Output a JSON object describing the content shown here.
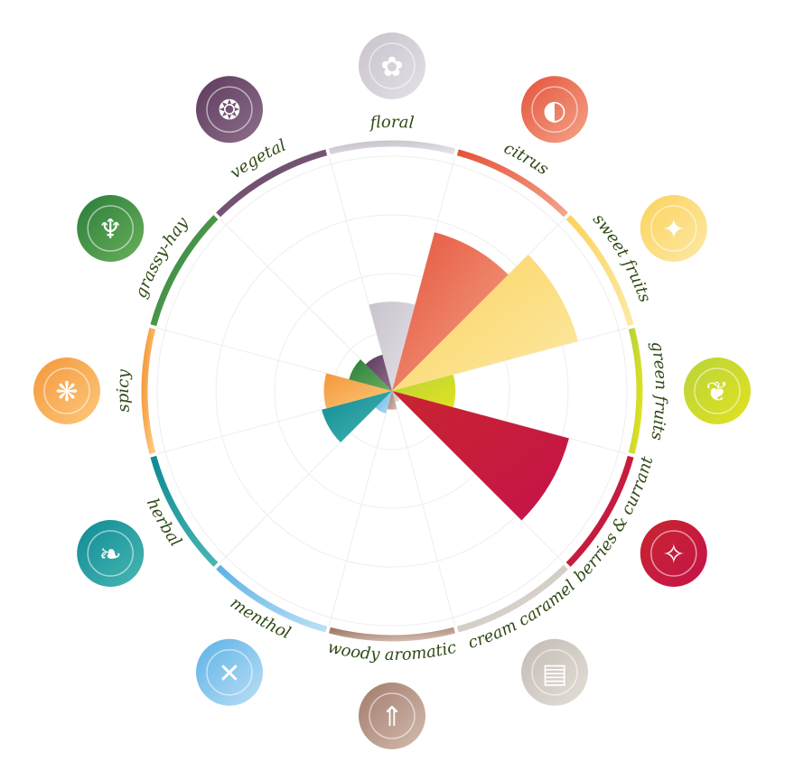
{
  "chart_data": {
    "type": "polar-area",
    "title": "",
    "max_value": 10,
    "categories": [
      {
        "label": "floral",
        "value": 3.8,
        "icon": "flower-icon",
        "color_start": "#c9c3cc",
        "color_end": "#e4e0e6"
      },
      {
        "label": "citrus",
        "value": 7.0,
        "icon": "lemon-slice-icon",
        "color_start": "#e4533a",
        "color_end": "#f4a48a"
      },
      {
        "label": "sweet fruits",
        "value": 8.2,
        "icon": "pineapple-icon",
        "color_start": "#fbd25c",
        "color_end": "#fde9a6"
      },
      {
        "label": "green fruits",
        "value": 2.7,
        "icon": "pear-icon",
        "color_start": "#b9d33a",
        "color_end": "#e2e21f"
      },
      {
        "label": "berries & currant",
        "value": 7.8,
        "icon": "berries-icon",
        "color_start": "#c8252f",
        "color_end": "#c5134a"
      },
      {
        "label": "cream caramel",
        "value": 0.5,
        "icon": "cake-icon",
        "color_start": "#c3bbb3",
        "color_end": "#e4dfd9"
      },
      {
        "label": "woody aromatic",
        "value": 0.8,
        "icon": "trees-icon",
        "color_start": "#a27b6c",
        "color_end": "#d3bcaf"
      },
      {
        "label": "menthol",
        "value": 1.0,
        "icon": "candy-cane-icon",
        "color_start": "#5bb2e6",
        "color_end": "#bcdff5"
      },
      {
        "label": "herbal",
        "value": 3.1,
        "icon": "leaf-icon",
        "color_start": "#0f8b94",
        "color_end": "#49b7b3"
      },
      {
        "label": "spicy",
        "value": 2.9,
        "icon": "chili-pepper-icon",
        "color_start": "#f4973a",
        "color_end": "#fcc97c"
      },
      {
        "label": "grassy-hay",
        "value": 1.9,
        "icon": "grass-icon",
        "color_start": "#2a7c3c",
        "color_end": "#6ab05a"
      },
      {
        "label": "vegetal",
        "value": 1.6,
        "icon": "onion-icon",
        "color_start": "#5d3a5c",
        "color_end": "#8e6f8c"
      }
    ]
  }
}
